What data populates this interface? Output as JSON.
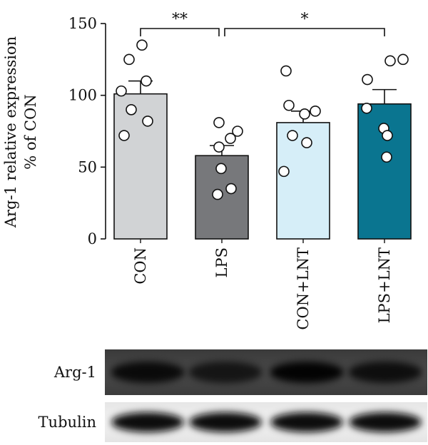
{
  "chart_data": {
    "type": "bar",
    "ylabel_line1": "Arg-1 relative expression",
    "ylabel_line2": "% of CON",
    "ylim": [
      0,
      150
    ],
    "yticks": [
      0,
      50,
      100,
      150
    ],
    "categories": [
      "CON",
      "LPS",
      "CON+LNT",
      "LPS+LNT"
    ],
    "values": [
      101,
      58,
      81,
      94
    ],
    "errors": [
      9,
      7,
      8,
      10
    ],
    "colors": [
      "#d1d3d5",
      "#77787b",
      "#d6eef8",
      "#0a7590"
    ],
    "points": [
      [
        135,
        125,
        110,
        103,
        90,
        82,
        72
      ],
      [
        81,
        75,
        70,
        64,
        49,
        35,
        31
      ],
      [
        117,
        93,
        89,
        87,
        72,
        67,
        47
      ],
      [
        125,
        124,
        111,
        91,
        77,
        72,
        57
      ]
    ],
    "significance": [
      {
        "from": 0,
        "to": 1,
        "label": "**"
      },
      {
        "from": 1,
        "to": 3,
        "label": "*"
      }
    ]
  },
  "blot": {
    "rows": [
      {
        "label": "Arg-1",
        "intensity": [
          0.85,
          0.7,
          0.95,
          0.8
        ]
      },
      {
        "label": "Tubulin",
        "intensity": [
          1.0,
          1.0,
          1.0,
          1.0
        ]
      }
    ]
  }
}
